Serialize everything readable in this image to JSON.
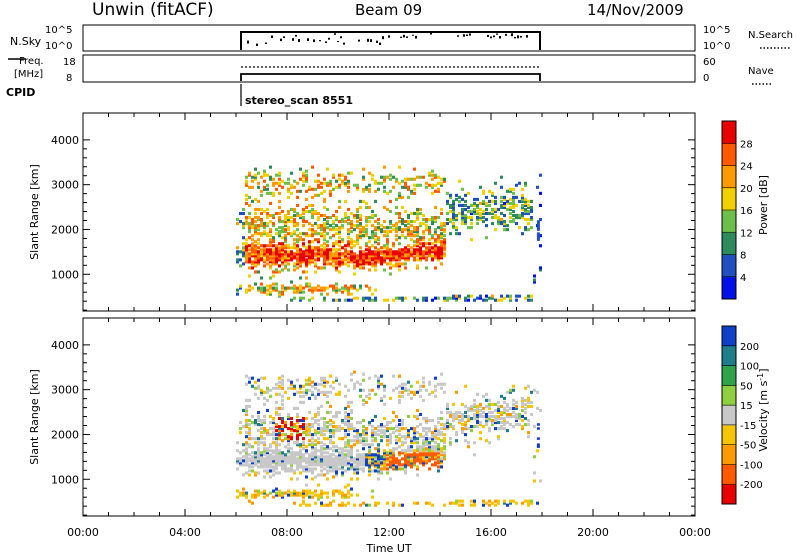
{
  "header": {
    "station": "Unwin (fitACF)",
    "beam": "Beam 09",
    "date": "14/Nov/2009"
  },
  "noise_panel": {
    "left_label": "N.Sky",
    "left_ticks": [
      "10^5",
      "10^0"
    ],
    "right_ticks": [
      "10^5",
      "10^0"
    ],
    "right_label": "N.Search"
  },
  "freq_panel": {
    "left_label_line1": "Freq.",
    "left_label_line2": "[MHz]",
    "left_ticks": [
      "18",
      "8"
    ],
    "right_ticks": [
      "60",
      "0"
    ],
    "right_label": "Nave"
  },
  "cpid": {
    "label": "CPID",
    "program": "stereo_scan 8551"
  },
  "chart_data": [
    {
      "type": "heatmap",
      "title": "Power",
      "ylabel": "Slant Range [km]",
      "xlabel": "",
      "x_ticks": [
        "00:00",
        "04:00",
        "08:00",
        "12:00",
        "16:00",
        "20:00",
        "00:00"
      ],
      "x_range_hours": [
        0,
        24
      ],
      "ylim": [
        180,
        4600
      ],
      "y_ticks": [
        1000,
        2000,
        3000,
        4000
      ],
      "colorbar_label": "Power [dB]",
      "colorbar_ticks": [
        4,
        8,
        12,
        16,
        20,
        24,
        28
      ],
      "colorbar_colors": [
        "#0010e8",
        "#2050c0",
        "#2d8a5a",
        "#6cc04a",
        "#f2d000",
        "#ff9a00",
        "#ff5a00",
        "#e80000"
      ],
      "data_window_hours": [
        6.0,
        18.0
      ]
    },
    {
      "type": "heatmap",
      "title": "Velocity",
      "ylabel": "Slant Range [km]",
      "xlabel": "Time UT",
      "x_ticks": [
        "00:00",
        "04:00",
        "08:00",
        "12:00",
        "16:00",
        "20:00",
        "00:00"
      ],
      "x_range_hours": [
        0,
        24
      ],
      "ylim": [
        180,
        4600
      ],
      "y_ticks": [
        1000,
        2000,
        3000,
        4000
      ],
      "colorbar_label": "Velocity [m s^-1]",
      "colorbar_ticks": [
        "200",
        "100",
        "50",
        "15",
        "-15",
        "-50",
        "-100",
        "-200"
      ],
      "colorbar_colors": [
        "#1040c8",
        "#207e8a",
        "#2fa34a",
        "#8fd040",
        "#c8c8c8",
        "#f6c400",
        "#ff9a00",
        "#ff5a00",
        "#e80000"
      ],
      "data_window_hours": [
        6.0,
        18.0
      ]
    }
  ],
  "colors": {
    "axis": "#000000",
    "grey_ground_scatter": "#c8c8c8"
  }
}
